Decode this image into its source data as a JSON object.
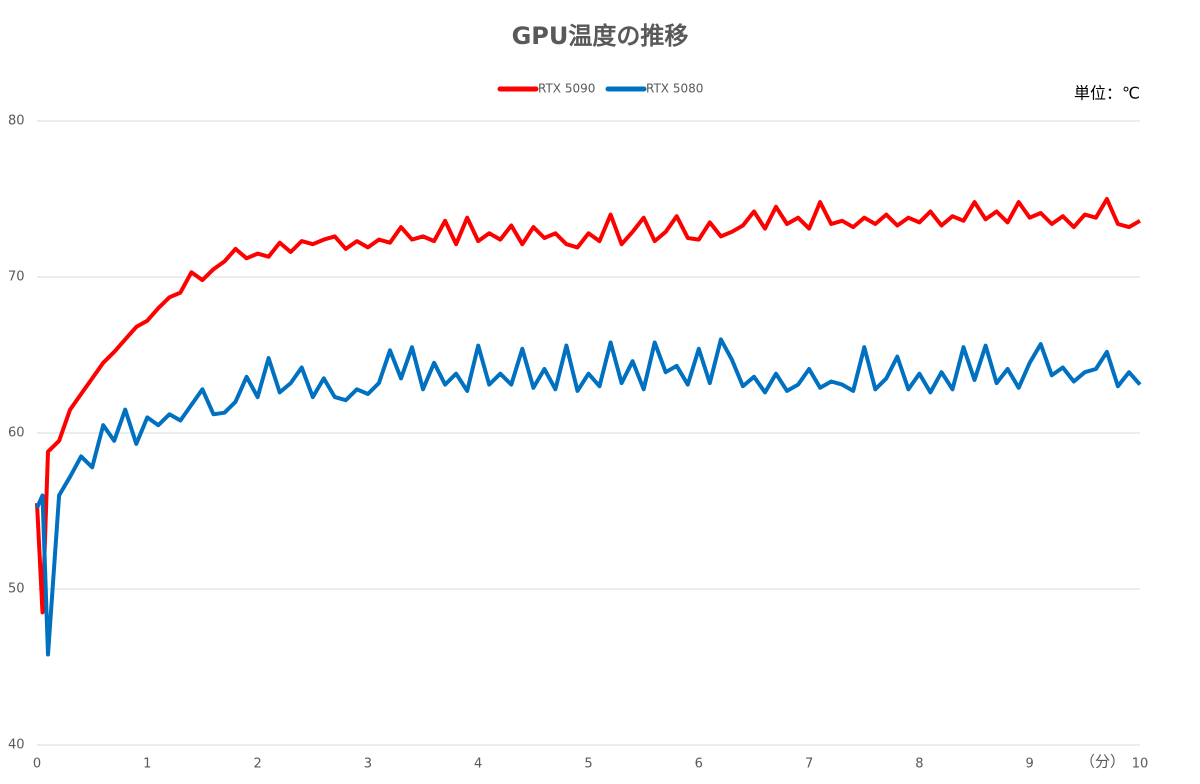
{
  "chart_data": {
    "type": "line",
    "title": "GPU温度の推移",
    "unit_label": "単位：℃",
    "xlabel": "（分）",
    "x": [
      0,
      0.05,
      0.1,
      0.2,
      0.3,
      0.4,
      0.5,
      0.6,
      0.7,
      0.8,
      0.9,
      1,
      1.1,
      1.2,
      1.3,
      1.4,
      1.5,
      1.6,
      1.7,
      1.8,
      1.9,
      2,
      2.1,
      2.2,
      2.3,
      2.4,
      2.5,
      2.6,
      2.7,
      2.8,
      2.9,
      3,
      3.1,
      3.2,
      3.3,
      3.4,
      3.5,
      3.6,
      3.7,
      3.8,
      3.9,
      4,
      4.1,
      4.2,
      4.3,
      4.4,
      4.5,
      4.6,
      4.7,
      4.8,
      4.9,
      5,
      5.1,
      5.2,
      5.3,
      5.4,
      5.5,
      5.6,
      5.7,
      5.8,
      5.9,
      6,
      6.1,
      6.2,
      6.3,
      6.4,
      6.5,
      6.6,
      6.7,
      6.8,
      6.9,
      7,
      7.1,
      7.2,
      7.3,
      7.4,
      7.5,
      7.6,
      7.7,
      7.8,
      7.9,
      8,
      8.1,
      8.2,
      8.3,
      8.4,
      8.5,
      8.6,
      8.7,
      8.8,
      8.9,
      9,
      9.1,
      9.2,
      9.3,
      9.4,
      9.5,
      9.6,
      9.7,
      9.8,
      9.9,
      10
    ],
    "series": [
      {
        "name": "RTX 5090",
        "color": "#ff0000",
        "values": [
          55.5,
          48.5,
          58.8,
          59.5,
          61.5,
          62.5,
          63.5,
          64.5,
          65.2,
          66,
          66.8,
          67.2,
          68,
          68.7,
          69,
          70.3,
          69.8,
          70.5,
          71,
          71.8,
          71.2,
          71.5,
          71.3,
          72.2,
          71.6,
          72.3,
          72.1,
          72.4,
          72.6,
          71.8,
          72.3,
          71.9,
          72.4,
          72.2,
          73.2,
          72.4,
          72.6,
          72.3,
          73.6,
          72.1,
          73.8,
          72.3,
          72.8,
          72.4,
          73.3,
          72.1,
          73.2,
          72.5,
          72.8,
          72.1,
          71.9,
          72.8,
          72.3,
          74,
          72.1,
          72.9,
          73.8,
          72.3,
          72.9,
          73.9,
          72.5,
          72.4,
          73.5,
          72.6,
          72.9,
          73.3,
          74.2,
          73.1,
          74.5,
          73.4,
          73.8,
          73.1,
          74.8,
          73.4,
          73.6,
          73.2,
          73.8,
          73.4,
          74,
          73.3,
          73.8,
          73.5,
          74.2,
          73.3,
          73.9,
          73.6,
          74.8,
          73.7,
          74.2,
          73.5,
          74.8,
          73.8,
          74.1,
          73.4,
          73.9,
          73.2,
          74,
          73.8,
          75,
          73.4,
          73.2,
          73.6
        ]
      },
      {
        "name": "RTX 5080",
        "color": "#0070c0",
        "values": [
          55.2,
          56,
          45.8,
          56,
          57.2,
          58.5,
          57.8,
          60.5,
          59.5,
          61.5,
          59.3,
          61,
          60.5,
          61.2,
          60.8,
          61.8,
          62.8,
          61.2,
          61.3,
          62,
          63.6,
          62.3,
          64.8,
          62.6,
          63.2,
          64.2,
          62.3,
          63.5,
          62.3,
          62.1,
          62.8,
          62.5,
          63.2,
          65.3,
          63.5,
          65.5,
          62.8,
          64.5,
          63.1,
          63.8,
          62.7,
          65.6,
          63.1,
          63.8,
          63.1,
          65.4,
          62.9,
          64.1,
          62.8,
          65.6,
          62.7,
          63.8,
          63,
          65.8,
          63.2,
          64.6,
          62.8,
          65.8,
          63.9,
          64.3,
          63.1,
          65.4,
          63.2,
          66,
          64.7,
          63,
          63.6,
          62.6,
          63.8,
          62.7,
          63.1,
          64.1,
          62.9,
          63.3,
          63.1,
          62.7,
          65.5,
          62.8,
          63.5,
          64.9,
          62.8,
          63.8,
          62.6,
          63.9,
          62.8,
          65.5,
          63.4,
          65.6,
          63.2,
          64.1,
          62.9,
          64.5,
          65.7,
          63.7,
          64.2,
          63.3,
          63.9,
          64.1,
          65.2,
          63,
          63.9,
          63.1
        ]
      }
    ],
    "xlim": [
      0,
      10
    ],
    "xticks": [
      0,
      1,
      2,
      3,
      4,
      5,
      6,
      7,
      8,
      9,
      10
    ],
    "ylim": [
      40,
      80
    ],
    "yticks": [
      40,
      50,
      60,
      70,
      80
    ],
    "grid": true
  }
}
